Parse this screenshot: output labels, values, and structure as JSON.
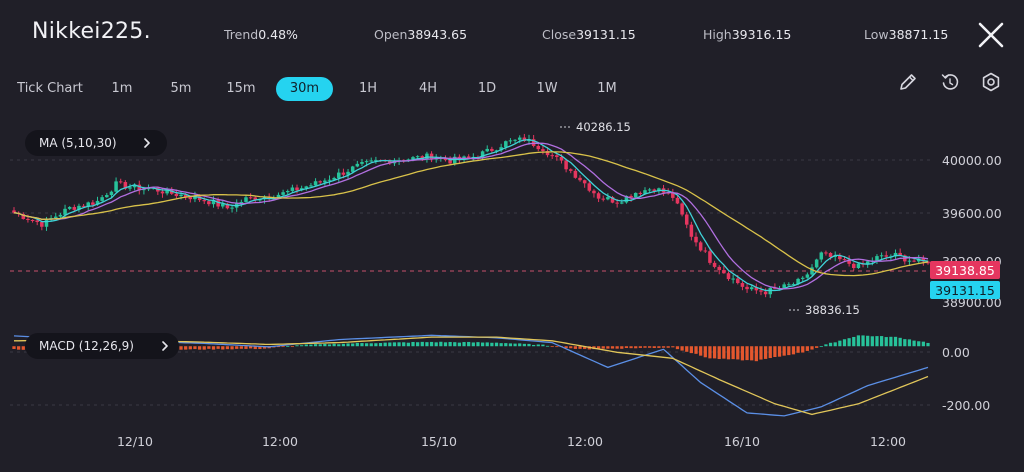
{
  "header": {
    "symbol": "Nikkei225.",
    "stats": [
      {
        "label": "Trend",
        "value": "0.48%"
      },
      {
        "label": "Open",
        "value": "38943.65"
      },
      {
        "label": "Close",
        "value": "39131.15"
      },
      {
        "label": "High",
        "value": "39316.15"
      },
      {
        "label": "Low",
        "value": "38871.15"
      }
    ]
  },
  "timeframes": [
    "Tick Chart",
    "1m",
    "5m",
    "15m",
    "30m",
    "1H",
    "4H",
    "1D",
    "1W",
    "1M"
  ],
  "active_timeframe": "30m",
  "tools": [
    "pencil-icon",
    "replay-icon",
    "settings-icon"
  ],
  "ma_label": "MA (5,10,30)",
  "macd_label": "MACD (12,26,9)",
  "chart_data": [
    {
      "type": "candlestick",
      "indicator": "MA (5,10,30)",
      "y_axis_ticks": [
        "40000.00",
        "39600.00",
        "39200.00",
        "38900.00"
      ],
      "ylim": [
        38700,
        40400
      ],
      "x_tick_labels": [
        "12/10",
        "12:00",
        "15/10",
        "12:00",
        "16/10",
        "12:00"
      ],
      "annotations": {
        "high": "40286.15",
        "low": "38836.15"
      },
      "current_price": "39138.85",
      "close_price": "39131.15",
      "close_path": [
        [
          0,
          39580
        ],
        [
          6,
          39480
        ],
        [
          12,
          39620
        ],
        [
          18,
          39680
        ],
        [
          22,
          39830
        ],
        [
          26,
          39800
        ],
        [
          30,
          39790
        ],
        [
          34,
          39750
        ],
        [
          38,
          39720
        ],
        [
          42,
          39680
        ],
        [
          46,
          39620
        ],
        [
          50,
          39700
        ],
        [
          54,
          39720
        ],
        [
          58,
          39750
        ],
        [
          62,
          39800
        ],
        [
          66,
          39850
        ],
        [
          70,
          39920
        ],
        [
          74,
          39990
        ],
        [
          78,
          40030
        ],
        [
          82,
          40050
        ],
        [
          86,
          40060
        ],
        [
          90,
          40080
        ],
        [
          94,
          40040
        ],
        [
          98,
          40060
        ],
        [
          102,
          40120
        ],
        [
          106,
          40200
        ],
        [
          110,
          40230
        ],
        [
          114,
          40150
        ],
        [
          118,
          40020
        ],
        [
          122,
          39880
        ],
        [
          126,
          39720
        ],
        [
          130,
          39680
        ],
        [
          134,
          39760
        ],
        [
          138,
          39800
        ],
        [
          142,
          39720
        ],
        [
          146,
          39380
        ],
        [
          150,
          39160
        ],
        [
          154,
          39020
        ],
        [
          158,
          38900
        ],
        [
          162,
          38880
        ],
        [
          166,
          38920
        ],
        [
          170,
          38980
        ],
        [
          174,
          39210
        ],
        [
          178,
          39160
        ],
        [
          182,
          39100
        ],
        [
          186,
          39180
        ],
        [
          190,
          39200
        ],
        [
          194,
          39150
        ],
        [
          197,
          39131
        ]
      ],
      "ma_colors": {
        "ma5": "#3fd3d8",
        "ma10": "#b16fe0",
        "ma30": "#d9c24a"
      },
      "up_color": "#27c29a",
      "down_color": "#e5365f"
    },
    {
      "type": "macd",
      "indicator": "MACD (12,26,9)",
      "y_axis_ticks": [
        "0.00",
        "-200.00"
      ],
      "ylim": [
        -260,
        80
      ],
      "histogram_path": [
        [
          0,
          -10
        ],
        [
          12,
          -14
        ],
        [
          22,
          -8
        ],
        [
          30,
          -12
        ],
        [
          42,
          -10
        ],
        [
          54,
          -8
        ],
        [
          62,
          4
        ],
        [
          74,
          10
        ],
        [
          90,
          14
        ],
        [
          104,
          12
        ],
        [
          114,
          4
        ],
        [
          122,
          -10
        ],
        [
          134,
          -6
        ],
        [
          142,
          -4
        ],
        [
          150,
          -40
        ],
        [
          160,
          -48
        ],
        [
          170,
          -20
        ],
        [
          176,
          10
        ],
        [
          182,
          36
        ],
        [
          190,
          30
        ],
        [
          197,
          12
        ]
      ],
      "dif_path": [
        [
          0,
          34
        ],
        [
          20,
          20
        ],
        [
          40,
          10
        ],
        [
          55,
          -2
        ],
        [
          70,
          22
        ],
        [
          90,
          36
        ],
        [
          104,
          28
        ],
        [
          116,
          12
        ],
        [
          128,
          -70
        ],
        [
          140,
          -10
        ],
        [
          148,
          -120
        ],
        [
          158,
          -220
        ],
        [
          166,
          -230
        ],
        [
          174,
          -200
        ],
        [
          184,
          -130
        ],
        [
          197,
          -70
        ]
      ],
      "dea_path": [
        [
          0,
          18
        ],
        [
          20,
          20
        ],
        [
          40,
          14
        ],
        [
          55,
          6
        ],
        [
          70,
          12
        ],
        [
          90,
          30
        ],
        [
          104,
          30
        ],
        [
          116,
          18
        ],
        [
          130,
          -20
        ],
        [
          142,
          -40
        ],
        [
          152,
          -110
        ],
        [
          164,
          -190
        ],
        [
          172,
          -225
        ],
        [
          182,
          -190
        ],
        [
          197,
          -100
        ]
      ],
      "dif_color": "#5b8fe6",
      "dea_color": "#e1c65a"
    }
  ]
}
